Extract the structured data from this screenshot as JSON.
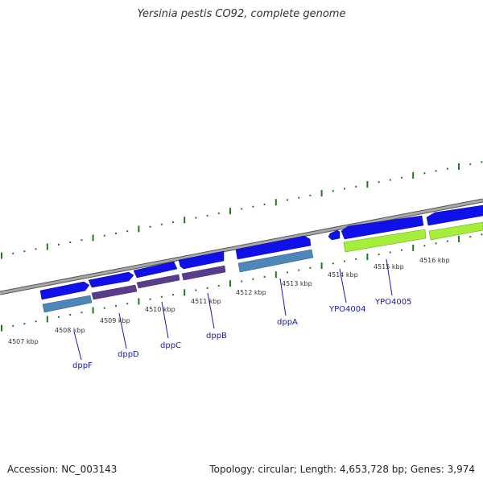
{
  "title": "Yersinia pestis CO92, complete genome",
  "accession": "Accession: NC_003143",
  "stats": "Topology: circular; Length: 4,653,728 bp; Genes: 3,974",
  "scale_labels": [
    "4507 kbp",
    "4508 kbp",
    "4509 kbp",
    "4510 kbp",
    "4511 kbp",
    "4512 kbp",
    "4513 kbp",
    "4514 kbp",
    "4515 kbp",
    "4516 kbp"
  ],
  "genes": [
    {
      "name": "dppF"
    },
    {
      "name": "dppD"
    },
    {
      "name": "dppC"
    },
    {
      "name": "dppB"
    },
    {
      "name": "dppA"
    },
    {
      "name": "YPO4004"
    },
    {
      "name": "YPO4005"
    }
  ],
  "colors": {
    "cds": "#1010e8",
    "steel": "#4f86b8",
    "purple": "#5a3c8c",
    "lime": "#a6ee3a",
    "tick": "#1f7a1f",
    "backbone": "#8a8a8a",
    "label": "#1a1aa8"
  }
}
